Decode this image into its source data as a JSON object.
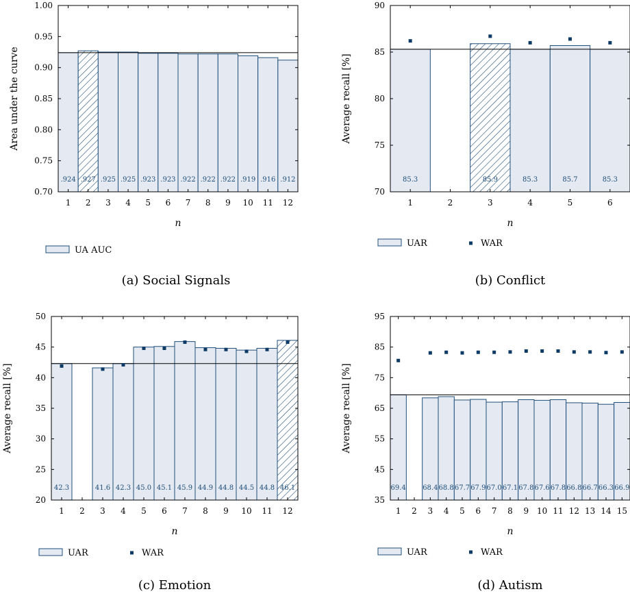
{
  "colors": {
    "bar_fill": "#e4e9f2",
    "bar_stroke": "#1f4e79",
    "marker": "#0d3b66",
    "hline": "#000000"
  },
  "chart_data": [
    {
      "type": "bar",
      "caption": "(a) Social Signals",
      "ylabel": "Area under the curve",
      "xlabel": "n",
      "ylim": [
        0.7,
        1.0
      ],
      "yticks": [
        "0.70",
        "0.75",
        "0.80",
        "0.85",
        "0.90",
        "0.95",
        "1.00"
      ],
      "categories": [
        "1",
        "2",
        "3",
        "4",
        "5",
        "6",
        "7",
        "8",
        "9",
        "10",
        "11",
        "12"
      ],
      "series": [
        {
          "name": "UA AUC",
          "kind": "bar",
          "values": [
            0.924,
            0.927,
            0.925,
            0.925,
            0.923,
            0.923,
            0.922,
            0.922,
            0.922,
            0.919,
            0.916,
            0.912
          ],
          "labels": [
            ".924",
            ".927",
            ".925",
            ".925",
            ".923",
            ".923",
            ".922",
            ".922",
            ".922",
            ".919",
            ".916",
            ".912"
          ]
        }
      ],
      "highlight_index": 1,
      "baseline": 0.924,
      "legend": [
        "UA AUC"
      ]
    },
    {
      "type": "bar",
      "caption": "(b) Conflict",
      "ylabel": "Average recall [%]",
      "xlabel": "n",
      "ylim": [
        70,
        90
      ],
      "yticks": [
        "70",
        "75",
        "80",
        "85",
        "90"
      ],
      "categories": [
        "1",
        "2",
        "3",
        "4",
        "5",
        "6"
      ],
      "series": [
        {
          "name": "UAR",
          "kind": "bar",
          "values": [
            85.3,
            null,
            85.9,
            85.3,
            85.7,
            85.3
          ],
          "labels": [
            "85.3",
            "",
            "85.9",
            "85.3",
            "85.7",
            "85.3"
          ]
        },
        {
          "name": "WAR",
          "kind": "marker",
          "values": [
            86.2,
            null,
            86.7,
            86.0,
            86.4,
            86.0
          ]
        }
      ],
      "highlight_index": 2,
      "baseline": 85.3,
      "legend": [
        "UAR",
        "WAR"
      ]
    },
    {
      "type": "bar",
      "caption": "(c) Emotion",
      "ylabel": "Average recall [%]",
      "xlabel": "n",
      "ylim": [
        20,
        50
      ],
      "yticks": [
        "20",
        "25",
        "30",
        "35",
        "40",
        "45",
        "50"
      ],
      "categories": [
        "1",
        "2",
        "3",
        "4",
        "5",
        "6",
        "7",
        "8",
        "9",
        "10",
        "11",
        "12"
      ],
      "series": [
        {
          "name": "UAR",
          "kind": "bar",
          "values": [
            42.3,
            null,
            41.6,
            42.3,
            45.0,
            45.1,
            45.9,
            44.9,
            44.8,
            44.5,
            44.8,
            46.1
          ],
          "labels": [
            "42.3",
            "",
            "41.6",
            "42.3",
            "45.0",
            "45.1",
            "45.9",
            "44.9",
            "44.8",
            "44.5",
            "44.8",
            "46.1"
          ]
        },
        {
          "name": "WAR",
          "kind": "marker",
          "values": [
            41.9,
            null,
            41.4,
            42.1,
            44.8,
            44.8,
            45.8,
            44.6,
            44.6,
            44.3,
            44.6,
            45.8
          ]
        }
      ],
      "highlight_index": 11,
      "baseline": 42.3,
      "legend": [
        "UAR",
        "WAR"
      ]
    },
    {
      "type": "bar",
      "caption": "(d) Autism",
      "ylabel": "Average recall [%]",
      "xlabel": "n",
      "ylim": [
        35,
        95
      ],
      "yticks": [
        "35",
        "45",
        "55",
        "65",
        "75",
        "85",
        "95"
      ],
      "categories": [
        "1",
        "2",
        "3",
        "4",
        "5",
        "6",
        "7",
        "8",
        "9",
        "10",
        "11",
        "12",
        "13",
        "14",
        "15"
      ],
      "series": [
        {
          "name": "UAR",
          "kind": "bar",
          "values": [
            69.4,
            null,
            68.4,
            68.8,
            67.7,
            67.9,
            67.0,
            67.1,
            67.8,
            67.6,
            67.8,
            66.8,
            66.7,
            66.3,
            66.9
          ],
          "labels": [
            "69.4",
            "",
            "68.4",
            "68.8",
            "67.7",
            "67.9",
            "67.0",
            "67.1",
            "67.8",
            "67.6",
            "67.8",
            "66.8",
            "66.7",
            "66.3",
            "66.9"
          ]
        },
        {
          "name": "WAR",
          "kind": "marker",
          "values": [
            80.6,
            null,
            83.1,
            83.3,
            83.1,
            83.3,
            83.3,
            83.4,
            83.7,
            83.7,
            83.7,
            83.4,
            83.4,
            83.2,
            83.4
          ]
        }
      ],
      "highlight_index": -1,
      "baseline": 69.4,
      "legend": [
        "UAR",
        "WAR"
      ]
    }
  ]
}
